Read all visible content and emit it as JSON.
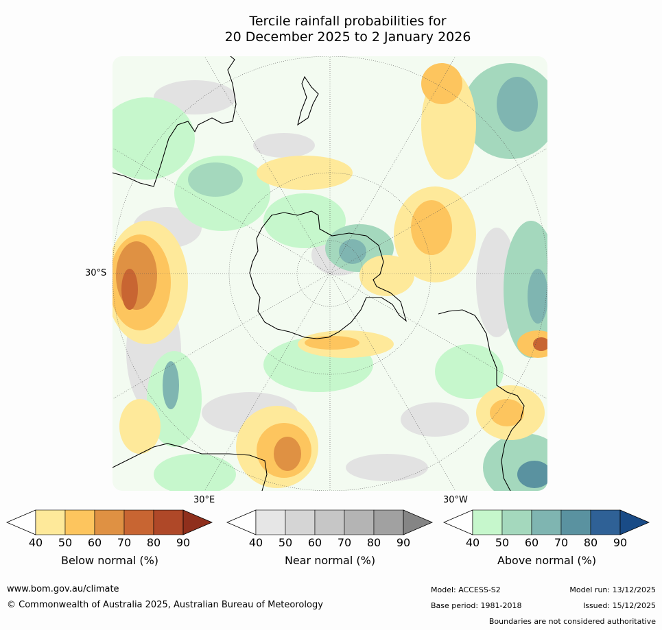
{
  "title": {
    "line1": "Tercile rainfall probabilities for",
    "line2": "20 December 2025 to 2 January 2026"
  },
  "map": {
    "projection": "south-polar stereographic",
    "labels": {
      "lat_30s": "30°S",
      "lon_30e": "30°E",
      "lon_30w": "30°W"
    },
    "colors": {
      "below": [
        "#fee99a",
        "#fdc55e",
        "#df9143",
        "#c86532",
        "#af4828",
        "#8f2f1c"
      ],
      "near": [
        "#e6e6e6",
        "#d5d5d5",
        "#c6c6c6",
        "#b4b4b4",
        "#a1a1a1",
        "#858585"
      ],
      "above": [
        "#c6f7cc",
        "#a4d8bd",
        "#7fb5b1",
        "#5a92a0",
        "#2f6196",
        "#194b86"
      ]
    }
  },
  "legends": [
    {
      "title": "Below normal (%)",
      "ticks": [
        "40",
        "50",
        "60",
        "70",
        "80",
        "90"
      ]
    },
    {
      "title": "Near normal (%)",
      "ticks": [
        "40",
        "50",
        "60",
        "70",
        "80",
        "90"
      ]
    },
    {
      "title": "Above normal (%)",
      "ticks": [
        "40",
        "50",
        "60",
        "70",
        "80",
        "90"
      ]
    }
  ],
  "footer": {
    "url": "www.bom.gov.au/climate",
    "copyright": "© Commonwealth of Australia 2025, Australian Bureau of Meteorology",
    "model": "Model: ACCESS-S2",
    "base_period": "Base period: 1981-2018",
    "model_run": "Model run: 13/12/2025",
    "issued": "Issued: 15/12/2025",
    "disclaimer": "Boundaries are not considered authoritative"
  }
}
